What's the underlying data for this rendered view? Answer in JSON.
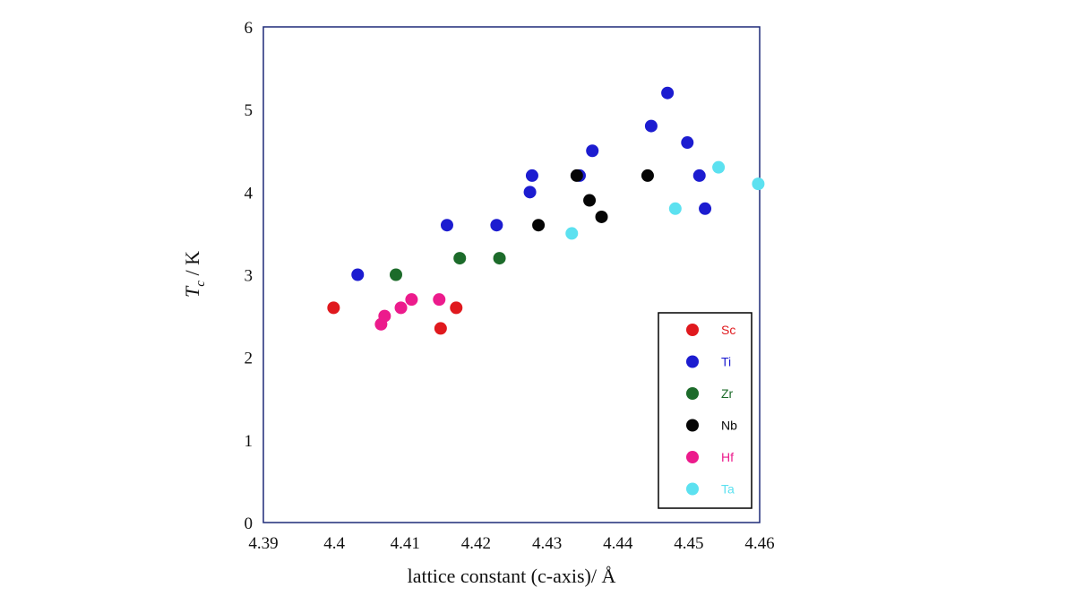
{
  "chart_data": {
    "type": "scatter",
    "title": "",
    "xlabel": "lattice constant (c-axis)/ Å",
    "ylabel": {
      "main": "T",
      "sub": "c",
      "unit": " / K"
    },
    "xlim": [
      4.39,
      4.46
    ],
    "ylim": [
      0,
      6
    ],
    "xticks": [
      "4.39",
      "4.4",
      "4.41",
      "4.42",
      "4.43",
      "4.44",
      "4.45",
      "4.46"
    ],
    "yticks": [
      "0",
      "1",
      "2",
      "3",
      "4",
      "5",
      "6"
    ],
    "xtick_values": [
      4.39,
      4.4,
      4.41,
      4.42,
      4.43,
      4.44,
      4.45,
      4.46
    ],
    "ytick_values": [
      0,
      1,
      2,
      3,
      4,
      5,
      6
    ],
    "grid": false,
    "legend_position": "bottom-right",
    "series": [
      {
        "name": "Sc",
        "color": "#e0191e",
        "points": [
          [
            4.3999,
            2.6
          ],
          [
            4.415,
            2.35
          ],
          [
            4.4172,
            2.6
          ]
        ]
      },
      {
        "name": "Ti",
        "color": "#1c1cd0",
        "points": [
          [
            4.4033,
            3.0
          ],
          [
            4.4159,
            3.6
          ],
          [
            4.4229,
            3.6
          ],
          [
            4.4276,
            4.0
          ],
          [
            4.4279,
            4.2
          ],
          [
            4.4364,
            4.5
          ],
          [
            4.4346,
            4.2
          ],
          [
            4.4447,
            4.8
          ],
          [
            4.447,
            5.2
          ],
          [
            4.4498,
            4.6
          ],
          [
            4.4515,
            4.2
          ],
          [
            4.4523,
            3.8
          ]
        ]
      },
      {
        "name": "Zr",
        "color": "#1c6b2a",
        "points": [
          [
            4.4087,
            3.0
          ],
          [
            4.4177,
            3.2
          ],
          [
            4.4233,
            3.2
          ]
        ]
      },
      {
        "name": "Nb",
        "color": "#050505",
        "points": [
          [
            4.4288,
            3.6
          ],
          [
            4.4342,
            4.2
          ],
          [
            4.436,
            3.9
          ],
          [
            4.4377,
            3.7
          ],
          [
            4.4442,
            4.2
          ]
        ]
      },
      {
        "name": "Hf",
        "color": "#ec1b8c",
        "points": [
          [
            4.4066,
            2.4
          ],
          [
            4.4071,
            2.5
          ],
          [
            4.4094,
            2.6
          ],
          [
            4.4109,
            2.7
          ],
          [
            4.4148,
            2.7
          ]
        ]
      },
      {
        "name": "Ta",
        "color": "#5ce1f0",
        "points": [
          [
            4.4335,
            3.5
          ],
          [
            4.4481,
            3.8
          ],
          [
            4.4542,
            4.3
          ],
          [
            4.4598,
            4.1
          ]
        ]
      }
    ]
  }
}
